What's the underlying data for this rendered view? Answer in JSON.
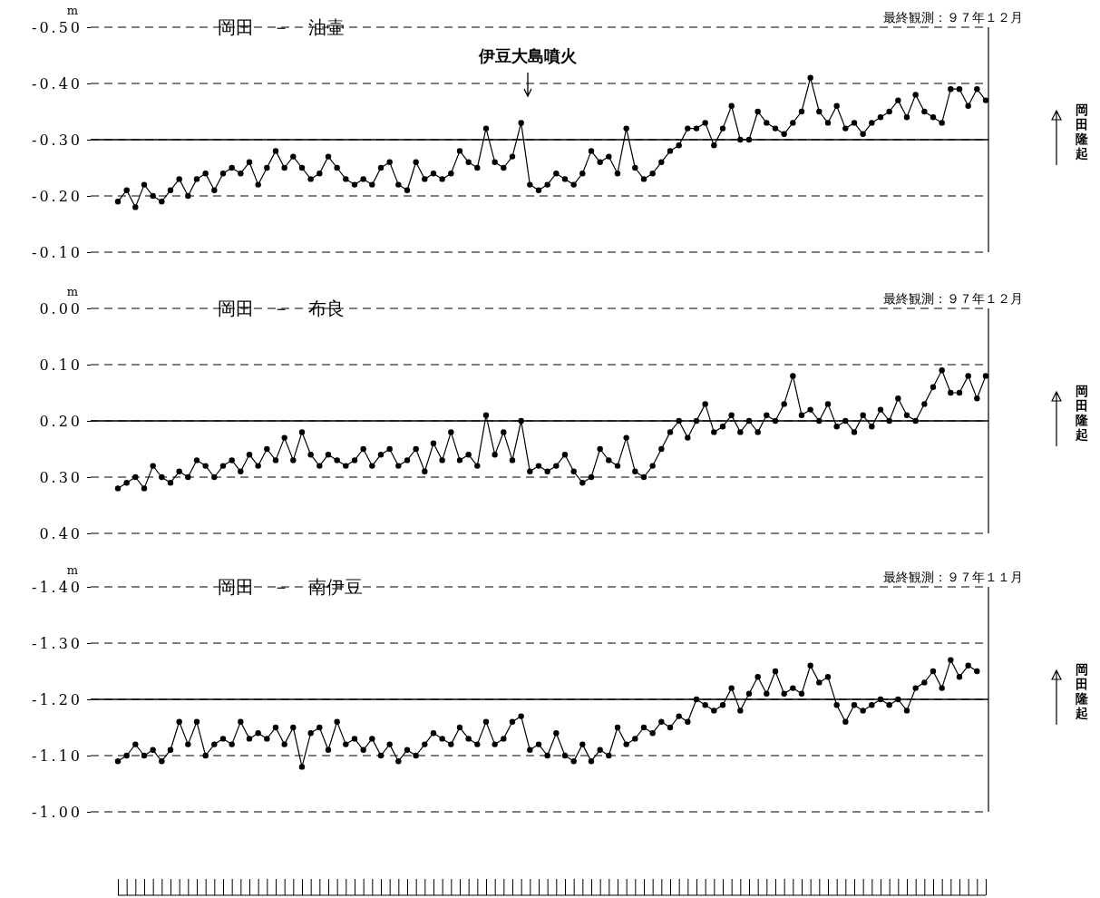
{
  "chart_data": [
    {
      "type": "line",
      "title": "岡田　－　油壷",
      "subtitle": "最終観測：９７年１２月",
      "ylabel": "m",
      "annotations": [
        "岡田隆起",
        "伊豆大島噴火"
      ],
      "categories": [
        null,
        null,
        null,
        null,
        null,
        null,
        null,
        null,
        null,
        null,
        null,
        null,
        null,
        null,
        null,
        null,
        null,
        null,
        null,
        null,
        null,
        null,
        null,
        null,
        null,
        null,
        null,
        null,
        null,
        null,
        null,
        null,
        null,
        null,
        null,
        null,
        null,
        null,
        null,
        null,
        null,
        null,
        null,
        null,
        null,
        null,
        null,
        null,
        null,
        null,
        null,
        null,
        null,
        null,
        null,
        null,
        null,
        null,
        null,
        null,
        null,
        null,
        null,
        null,
        null,
        null,
        null,
        null,
        null,
        null,
        null,
        null,
        null,
        null,
        null,
        null,
        null,
        null,
        null,
        null,
        null,
        null,
        null,
        null,
        null,
        null,
        null,
        null,
        null,
        null,
        null,
        null,
        null,
        null,
        null,
        null,
        null,
        null,
        null,
        null
      ],
      "series": [
        {
          "color": "#000000",
          "values": [
            -0.19,
            -0.21,
            -0.18,
            -0.22,
            -0.2,
            -0.19,
            -0.21,
            -0.23,
            -0.2,
            -0.23,
            -0.24,
            -0.21,
            -0.24,
            -0.25,
            -0.24,
            -0.26,
            -0.22,
            -0.25,
            -0.28,
            -0.25,
            -0.27,
            -0.25,
            -0.23,
            -0.24,
            -0.27,
            -0.25,
            -0.23,
            -0.22,
            -0.23,
            -0.22,
            -0.25,
            -0.26,
            -0.22,
            -0.21,
            -0.26,
            -0.23,
            -0.24,
            -0.23,
            -0.24,
            -0.28,
            -0.26,
            -0.25,
            -0.32,
            -0.26,
            -0.25,
            -0.27,
            -0.33,
            -0.22,
            -0.21,
            -0.22,
            -0.24,
            -0.23,
            -0.22,
            -0.24,
            -0.28,
            -0.26,
            -0.27,
            -0.24,
            -0.32,
            -0.25,
            -0.23,
            -0.24,
            -0.26,
            -0.28,
            -0.29,
            -0.32,
            -0.32,
            -0.33,
            -0.29,
            -0.32,
            -0.36,
            -0.3,
            -0.3,
            -0.35,
            -0.33,
            -0.32,
            -0.31,
            -0.33,
            -0.35,
            -0.41,
            -0.35,
            -0.33,
            -0.36,
            -0.32,
            -0.33,
            -0.31,
            -0.33,
            -0.34,
            -0.35,
            -0.37,
            -0.34,
            -0.38,
            -0.35,
            -0.34,
            -0.33,
            -0.39,
            -0.39,
            -0.36,
            -0.39,
            -0.37
          ]
        }
      ],
      "ylim": [
        -0.1,
        -0.5
      ],
      "yticks": [
        {
          "value": -0.5,
          "label": "-0.50"
        },
        {
          "value": -0.4,
          "label": "-0.40"
        },
        {
          "value": -0.3,
          "label": "-0.30"
        },
        {
          "value": -0.2,
          "label": "-0.20"
        },
        {
          "value": -0.1,
          "label": "-0.10"
        }
      ],
      "ref_lines": [
        {
          "axis": "y",
          "value": -0.3,
          "line_style": "solid"
        }
      ],
      "grid": "y",
      "marker": "circle",
      "line_style": "solid",
      "tick_labels": "y"
    },
    {
      "type": "line",
      "title": "岡田　－　布良",
      "subtitle": "最終観測：９７年１２月",
      "ylabel": "m",
      "annotations": [
        "岡田隆起"
      ],
      "categories": [
        null,
        null,
        null,
        null,
        null,
        null,
        null,
        null,
        null,
        null,
        null,
        null,
        null,
        null,
        null,
        null,
        null,
        null,
        null,
        null,
        null,
        null,
        null,
        null,
        null,
        null,
        null,
        null,
        null,
        null,
        null,
        null,
        null,
        null,
        null,
        null,
        null,
        null,
        null,
        null,
        null,
        null,
        null,
        null,
        null,
        null,
        null,
        null,
        null,
        null,
        null,
        null,
        null,
        null,
        null,
        null,
        null,
        null,
        null,
        null,
        null,
        null,
        null,
        null,
        null,
        null,
        null,
        null,
        null,
        null,
        null,
        null,
        null,
        null,
        null,
        null,
        null,
        null,
        null,
        null,
        null,
        null,
        null,
        null,
        null,
        null,
        null,
        null,
        null,
        null,
        null,
        null,
        null,
        null,
        null,
        null,
        null,
        null,
        null,
        null
      ],
      "series": [
        {
          "color": "#000000",
          "values": [
            0.32,
            0.31,
            0.3,
            0.32,
            0.28,
            0.3,
            0.31,
            0.29,
            0.3,
            0.27,
            0.28,
            0.3,
            0.28,
            0.27,
            0.29,
            0.26,
            0.28,
            0.25,
            0.27,
            0.23,
            0.27,
            0.22,
            0.26,
            0.28,
            0.26,
            0.27,
            0.28,
            0.27,
            0.25,
            0.28,
            0.26,
            0.25,
            0.28,
            0.27,
            0.25,
            0.29,
            0.24,
            0.27,
            0.22,
            0.27,
            0.26,
            0.28,
            0.19,
            0.26,
            0.22,
            0.27,
            0.2,
            0.29,
            0.28,
            0.29,
            0.28,
            0.26,
            0.29,
            0.31,
            0.3,
            0.25,
            0.27,
            0.28,
            0.23,
            0.29,
            0.3,
            0.28,
            0.25,
            0.22,
            0.2,
            0.23,
            0.2,
            0.17,
            0.22,
            0.21,
            0.19,
            0.22,
            0.2,
            0.22,
            0.19,
            0.2,
            0.17,
            0.12,
            0.19,
            0.18,
            0.2,
            0.17,
            0.21,
            0.2,
            0.22,
            0.19,
            0.21,
            0.18,
            0.2,
            0.16,
            0.19,
            0.2,
            0.17,
            0.14,
            0.11,
            0.15,
            0.15,
            0.12,
            0.16,
            0.12
          ]
        }
      ],
      "ylim": [
        0.4,
        0.0
      ],
      "yticks": [
        {
          "value": 0.0,
          "label": "0.00"
        },
        {
          "value": 0.1,
          "label": "0.10"
        },
        {
          "value": 0.2,
          "label": "0.20"
        },
        {
          "value": 0.3,
          "label": "0.30"
        },
        {
          "value": 0.4,
          "label": "0.40"
        }
      ],
      "ref_lines": [
        {
          "axis": "y",
          "value": 0.2,
          "line_style": "solid"
        }
      ],
      "grid": "y",
      "marker": "circle",
      "line_style": "solid",
      "tick_labels": "y"
    },
    {
      "type": "line",
      "title": "岡田　－　南伊豆",
      "subtitle": "最終観測：９７年１１月",
      "ylabel": "m",
      "annotations": [
        "岡田隆起"
      ],
      "categories": [
        null,
        null,
        null,
        null,
        null,
        null,
        null,
        null,
        null,
        null,
        null,
        null,
        null,
        null,
        null,
        null,
        null,
        null,
        null,
        null,
        null,
        null,
        null,
        null,
        null,
        null,
        null,
        null,
        null,
        null,
        null,
        null,
        null,
        null,
        null,
        null,
        null,
        null,
        null,
        null,
        null,
        null,
        null,
        null,
        null,
        null,
        null,
        null,
        null,
        null,
        null,
        null,
        null,
        null,
        null,
        null,
        null,
        null,
        null,
        null,
        null,
        null,
        null,
        null,
        null,
        null,
        null,
        null,
        null,
        null,
        null,
        null,
        null,
        null,
        null,
        null,
        null,
        null,
        null,
        null,
        null,
        null,
        null,
        null,
        null,
        null,
        null,
        null,
        null,
        null,
        null,
        null,
        null,
        null,
        null,
        null,
        null,
        null,
        null,
        null
      ],
      "series": [
        {
          "color": "#000000",
          "values": [
            -1.09,
            -1.1,
            -1.12,
            -1.1,
            -1.11,
            -1.09,
            -1.11,
            -1.16,
            -1.12,
            -1.16,
            -1.1,
            -1.12,
            -1.13,
            -1.12,
            -1.16,
            -1.13,
            -1.14,
            -1.13,
            -1.15,
            -1.12,
            -1.15,
            -1.08,
            -1.14,
            -1.15,
            -1.11,
            -1.16,
            -1.12,
            -1.13,
            -1.11,
            -1.13,
            -1.1,
            -1.12,
            -1.09,
            -1.11,
            -1.1,
            -1.12,
            -1.14,
            -1.13,
            -1.12,
            -1.15,
            -1.13,
            -1.12,
            -1.16,
            -1.12,
            -1.13,
            -1.16,
            -1.17,
            -1.11,
            -1.12,
            -1.1,
            -1.14,
            -1.1,
            -1.09,
            -1.12,
            -1.09,
            -1.11,
            -1.1,
            -1.15,
            -1.12,
            -1.13,
            -1.15,
            -1.14,
            -1.16,
            -1.15,
            -1.17,
            -1.16,
            -1.2,
            -1.19,
            -1.18,
            -1.19,
            -1.22,
            -1.18,
            -1.21,
            -1.24,
            -1.21,
            -1.25,
            -1.21,
            -1.22,
            -1.21,
            -1.26,
            -1.23,
            -1.24,
            -1.19,
            -1.16,
            -1.19,
            -1.18,
            -1.19,
            -1.2,
            -1.19,
            -1.2,
            -1.18,
            -1.22,
            -1.23,
            -1.25,
            -1.22,
            -1.27,
            -1.24,
            -1.26,
            -1.25,
            null
          ]
        }
      ],
      "ylim": [
        -1.0,
        -1.4
      ],
      "yticks": [
        {
          "value": -1.4,
          "label": "-1.40"
        },
        {
          "value": -1.3,
          "label": "-1.30"
        },
        {
          "value": -1.2,
          "label": "-1.20"
        },
        {
          "value": -1.1,
          "label": "-1.10"
        },
        {
          "value": -1.0,
          "label": "-1.00"
        }
      ],
      "ref_lines": [
        {
          "axis": "y",
          "value": -1.2,
          "line_style": "solid"
        }
      ],
      "grid": "y",
      "marker": "circle",
      "line_style": "solid",
      "tick_labels": "y"
    }
  ]
}
